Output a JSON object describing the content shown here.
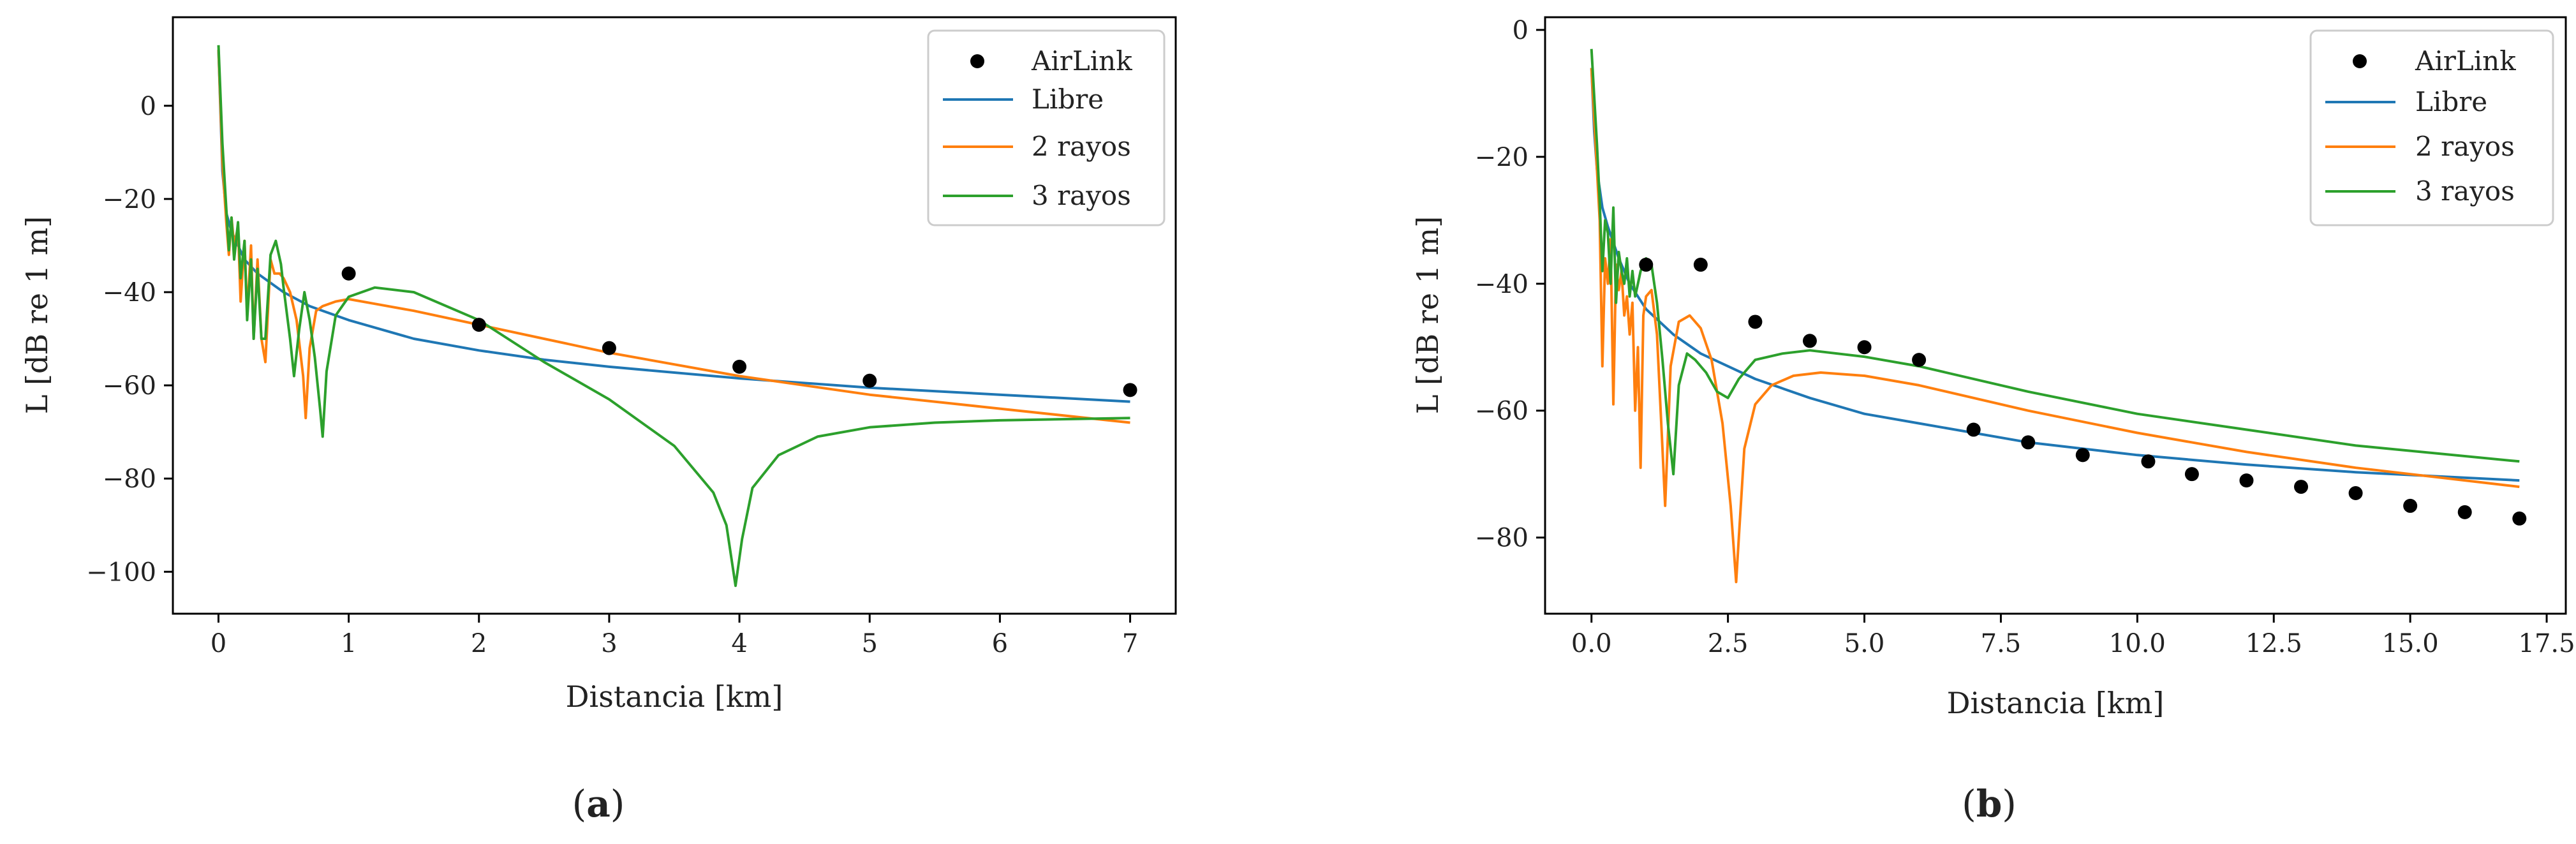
{
  "chart_data": [
    {
      "id": "a",
      "type": "line",
      "caption_label": "a",
      "xlabel": "Distancia [km]",
      "ylabel": "L [dB re 1 m]",
      "xlim": [
        -0.35,
        7.35
      ],
      "ylim": [
        -109,
        19
      ],
      "xticks": [
        0,
        1,
        2,
        3,
        4,
        5,
        6,
        7
      ],
      "xtick_labels": [
        "0",
        "1",
        "2",
        "3",
        "4",
        "5",
        "6",
        "7"
      ],
      "yticks": [
        0,
        -20,
        -40,
        -60,
        -80,
        -100
      ],
      "ytick_labels": [
        "0",
        "−20",
        "−40",
        "−60",
        "−80",
        "−100"
      ],
      "legend": {
        "position": "top-right",
        "entries": [
          "AirLink",
          "Libre",
          "2 rayos",
          "3 rayos"
        ]
      },
      "colors": {
        "AirLink": "#000000",
        "Libre": "#1f77b4",
        "2 rayos": "#ff7f0e",
        "3 rayos": "#2ca02c"
      },
      "series": [
        {
          "name": "AirLink",
          "kind": "scatter",
          "x": [
            1,
            2,
            3,
            4,
            5,
            7
          ],
          "y": [
            -36,
            -47,
            -52,
            -56,
            -59,
            -61
          ]
        },
        {
          "name": "Libre",
          "kind": "line",
          "x": [
            0.0,
            0.03,
            0.06,
            0.1,
            0.15,
            0.2,
            0.3,
            0.4,
            0.5,
            0.7,
            1.0,
            1.5,
            2.0,
            2.5,
            3.0,
            4.0,
            5.0,
            6.0,
            7.0
          ],
          "y": [
            12,
            -14,
            -23,
            -27,
            -30,
            -33,
            -36,
            -38,
            -40,
            -43,
            -46,
            -50,
            -52.5,
            -54.5,
            -56,
            -58.5,
            -60.5,
            -62,
            -63.5
          ]
        },
        {
          "name": "2 rayos",
          "kind": "line",
          "x": [
            0.0,
            0.03,
            0.06,
            0.08,
            0.1,
            0.12,
            0.15,
            0.17,
            0.2,
            0.22,
            0.25,
            0.27,
            0.3,
            0.33,
            0.36,
            0.4,
            0.43,
            0.47,
            0.5,
            0.55,
            0.6,
            0.65,
            0.67,
            0.7,
            0.75,
            0.8,
            0.9,
            1.0,
            1.2,
            1.5,
            2.0,
            2.5,
            3.0,
            4.0,
            5.0,
            6.0,
            7.0
          ],
          "y": [
            12,
            -12,
            -25,
            -32,
            -24,
            -30,
            -26,
            -42,
            -29,
            -45,
            -30,
            -50,
            -33,
            -50,
            -55,
            -33,
            -36,
            -36,
            -37,
            -40,
            -46,
            -58,
            -67,
            -52,
            -44,
            -43,
            -42,
            -41.5,
            -42.5,
            -44,
            -47,
            -50,
            -53,
            -58,
            -62,
            -65,
            -68
          ]
        },
        {
          "name": "3 rayos",
          "kind": "line",
          "x": [
            0.0,
            0.03,
            0.06,
            0.08,
            0.1,
            0.12,
            0.15,
            0.17,
            0.2,
            0.22,
            0.25,
            0.27,
            0.3,
            0.33,
            0.36,
            0.4,
            0.44,
            0.48,
            0.5,
            0.55,
            0.58,
            0.62,
            0.66,
            0.7,
            0.74,
            0.78,
            0.8,
            0.83,
            0.9,
            1.0,
            1.2,
            1.5,
            2.0,
            2.5,
            3.0,
            3.5,
            3.8,
            3.9,
            3.97,
            4.02,
            4.1,
            4.3,
            4.6,
            5.0,
            5.5,
            6.0,
            7.0
          ],
          "y": [
            13,
            -8,
            -22,
            -31,
            -24,
            -33,
            -25,
            -37,
            -29,
            -46,
            -33,
            -50,
            -35,
            -50,
            -50,
            -32,
            -29,
            -34,
            -39,
            -50,
            -58,
            -48,
            -40,
            -46,
            -54,
            -65,
            -71,
            -57,
            -45,
            -41,
            -39,
            -40,
            -46,
            -55,
            -63,
            -73,
            -83,
            -90,
            -103,
            -93,
            -82,
            -75,
            -71,
            -69,
            -68,
            -67.5,
            -67
          ]
        }
      ]
    },
    {
      "id": "b",
      "type": "line",
      "caption_label": "b",
      "xlabel": "Distancia [km]",
      "ylabel": "L [dB re 1 m]",
      "xlim": [
        -0.85,
        17.85
      ],
      "ylim": [
        -92,
        2
      ],
      "xticks": [
        0,
        2.5,
        5,
        7.5,
        10,
        12.5,
        15,
        17.5
      ],
      "xtick_labels": [
        "0.0",
        "2.5",
        "5.0",
        "7.5",
        "10.0",
        "12.5",
        "15.0",
        "17.5"
      ],
      "yticks": [
        0,
        -20,
        -40,
        -60,
        -80
      ],
      "ytick_labels": [
        "0",
        "−20",
        "−40",
        "−60",
        "−80"
      ],
      "legend": {
        "position": "top-right",
        "entries": [
          "AirLink",
          "Libre",
          "2 rayos",
          "3 rayos"
        ]
      },
      "colors": {
        "AirLink": "#000000",
        "Libre": "#1f77b4",
        "2 rayos": "#ff7f0e",
        "3 rayos": "#2ca02c"
      },
      "series": [
        {
          "name": "AirLink",
          "kind": "scatter",
          "x": [
            1,
            2,
            3,
            4,
            5,
            6,
            7,
            8,
            9,
            10.2,
            11,
            12,
            13,
            14,
            15,
            16,
            17
          ],
          "y": [
            -37,
            -37,
            -46,
            -49,
            -50,
            -52,
            -63,
            -65,
            -67,
            -68,
            -70,
            -71,
            -72,
            -73,
            -75,
            -76,
            -77
          ]
        },
        {
          "name": "Libre",
          "kind": "line",
          "x": [
            0.0,
            0.05,
            0.1,
            0.2,
            0.3,
            0.5,
            0.7,
            1.0,
            1.5,
            2.0,
            3.0,
            4.0,
            5.0,
            6.0,
            8.0,
            10.0,
            12.0,
            14.0,
            17.0
          ],
          "y": [
            -6,
            -16,
            -22,
            -28,
            -31,
            -36,
            -40,
            -44,
            -48,
            -51,
            -55,
            -58,
            -60.5,
            -62,
            -65,
            -67,
            -68.5,
            -69.7,
            -71
          ]
        },
        {
          "name": "2 rayos",
          "kind": "line",
          "x": [
            0.0,
            0.1,
            0.15,
            0.2,
            0.25,
            0.3,
            0.35,
            0.4,
            0.45,
            0.5,
            0.55,
            0.6,
            0.65,
            0.7,
            0.75,
            0.8,
            0.85,
            0.9,
            0.95,
            1.0,
            1.1,
            1.2,
            1.3,
            1.35,
            1.45,
            1.6,
            1.8,
            2.0,
            2.2,
            2.4,
            2.55,
            2.65,
            2.7,
            2.8,
            3.0,
            3.3,
            3.7,
            4.2,
            5.0,
            6.0,
            8.0,
            10.0,
            12.0,
            14.0,
            17.0
          ],
          "y": [
            -6,
            -22,
            -30,
            -53,
            -36,
            -40,
            -33,
            -59,
            -37,
            -41,
            -38,
            -45,
            -42,
            -48,
            -43,
            -60,
            -50,
            -69,
            -45,
            -42,
            -41,
            -48,
            -66,
            -75,
            -53,
            -46,
            -45,
            -47,
            -52,
            -62,
            -75,
            -87,
            -80,
            -66,
            -59,
            -56,
            -54.5,
            -54,
            -54.5,
            -56,
            -60,
            -63.5,
            -66.5,
            -69,
            -72
          ]
        },
        {
          "name": "3 rayos",
          "kind": "line",
          "x": [
            0.0,
            0.1,
            0.15,
            0.2,
            0.25,
            0.3,
            0.35,
            0.4,
            0.45,
            0.5,
            0.55,
            0.6,
            0.65,
            0.7,
            0.75,
            0.8,
            0.85,
            0.9,
            1.0,
            1.1,
            1.2,
            1.3,
            1.4,
            1.5,
            1.6,
            1.75,
            1.9,
            2.1,
            2.3,
            2.5,
            2.7,
            3.0,
            3.5,
            4.0,
            5.0,
            6.0,
            8.0,
            10.0,
            12.0,
            14.0,
            17.0
          ],
          "y": [
            -3,
            -18,
            -27,
            -38,
            -30,
            -32,
            -40,
            -28,
            -43,
            -35,
            -38,
            -40,
            -36,
            -42,
            -38,
            -42,
            -40,
            -38,
            -36,
            -37,
            -43,
            -52,
            -62,
            -70,
            -56,
            -51,
            -52,
            -54,
            -57,
            -58,
            -55,
            -52,
            -51,
            -50.5,
            -51.5,
            -53,
            -57,
            -60.5,
            -63,
            -65.5,
            -68
          ]
        }
      ]
    }
  ]
}
